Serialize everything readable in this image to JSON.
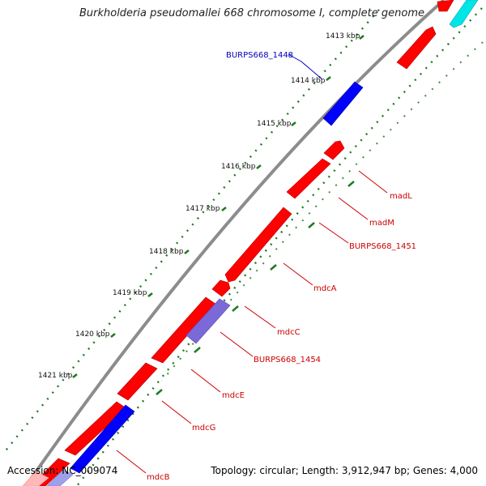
{
  "map": {
    "title": "Burkholderia pseudomallei 668 chromosome I, complete genome",
    "accession": "Accession: NC_009074",
    "summary": "Topology: circular; Length: 3,912,947 bp; Genes: 4,000",
    "colors": {
      "forward": "#ff0000",
      "reverse": "#0000ff",
      "reverse_faded": "#7b69d8",
      "other_strand": "#00e5e5",
      "backbone": "#8c8c8c",
      "ticks": "#1f7a1f",
      "forward_label": "#cc0000",
      "reverse_label": "#0000bb"
    },
    "ticks": [
      "1413 kbp",
      "1414 kbp",
      "1415 kbp",
      "1416 kbp",
      "1417 kbp",
      "1418 kbp",
      "1419 kbp",
      "1420 kbp",
      "1421 kbp"
    ],
    "gene_labels": [
      "BURPS668_1448",
      "madL",
      "madM",
      "BURPS668_1451",
      "mdcA",
      "mdcC",
      "BURPS668_1454",
      "mdcE",
      "mdcG",
      "mdcB"
    ]
  }
}
